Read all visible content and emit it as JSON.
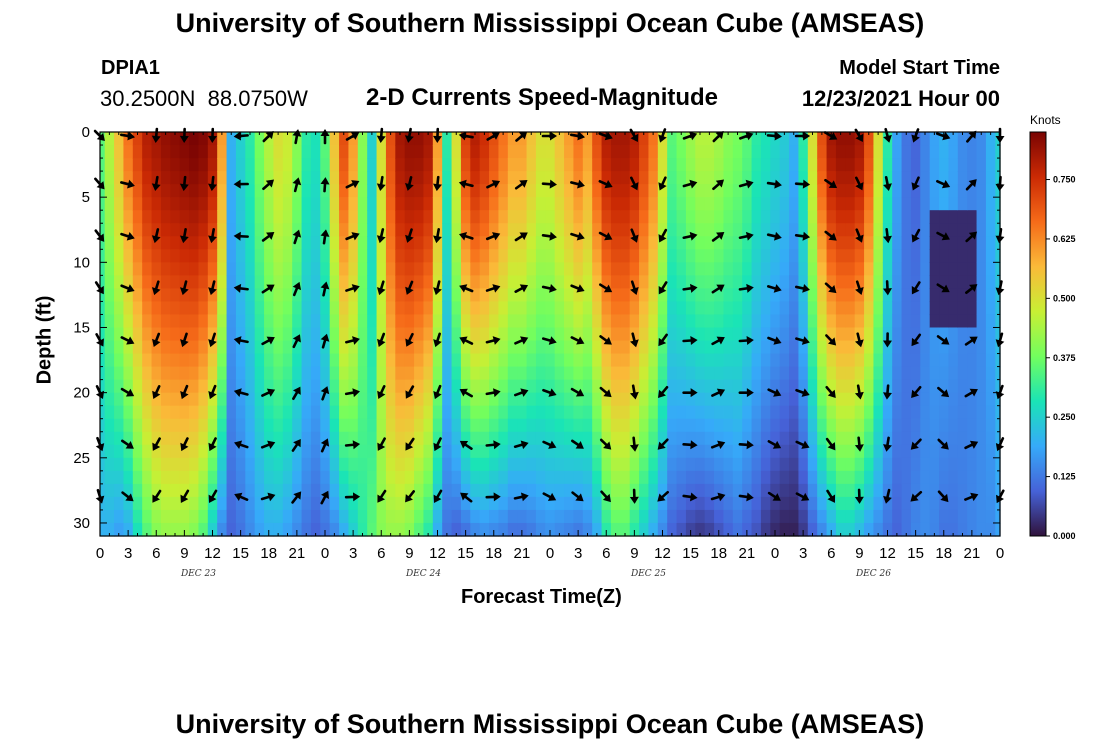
{
  "header": {
    "title": "University of Southern Mississippi Ocean Cube (AMSEAS)",
    "station_id": "DPIA1",
    "station_coords": "30.2500N  88.0750W",
    "chart_subtitle": "2-D Currents Speed-Magnitude",
    "model_start_label": "Model Start Time",
    "model_start_value": "12/23/2021 Hour 00"
  },
  "footer": {
    "title": "University of Southern Mississippi Ocean Cube (AMSEAS)"
  },
  "colors": {
    "colormap": [
      "#30123b",
      "#4662d8",
      "#36aaf9",
      "#1ae4b6",
      "#72fe5e",
      "#c8ef34",
      "#faba39",
      "#f66b19",
      "#cb2a04",
      "#7a0403"
    ]
  },
  "chart_data": {
    "type": "heatmap",
    "title": "2-D Currents Speed-Magnitude",
    "xlabel": "Forecast Time(Z)",
    "ylabel": "Depth (ft)",
    "x_ticks": [
      "0",
      "3",
      "6",
      "9",
      "12",
      "15",
      "18",
      "21",
      "0",
      "3",
      "6",
      "9",
      "12",
      "15",
      "18",
      "21",
      "0",
      "3",
      "6",
      "9",
      "12",
      "15",
      "18",
      "21",
      "0",
      "3",
      "6",
      "9",
      "12",
      "15",
      "18",
      "21",
      "0"
    ],
    "x_range_hours": [
      0,
      96
    ],
    "date_labels": [
      {
        "text": "DEC 23",
        "hour": 10.5
      },
      {
        "text": "DEC 24",
        "hour": 34.5
      },
      {
        "text": "DEC 25",
        "hour": 58.5
      },
      {
        "text": "DEC 26",
        "hour": 82.5
      }
    ],
    "y_ticks": [
      0,
      5,
      10,
      15,
      20,
      25,
      30
    ],
    "y_range_ft": [
      0,
      31
    ],
    "colorbar": {
      "label": "Knots",
      "range": [
        0,
        0.85
      ],
      "ticks": [
        "0.000",
        "0.125",
        "0.250",
        "0.375",
        "0.500",
        "0.625",
        "0.750"
      ]
    },
    "speed_profile": {
      "hours": [
        0,
        1,
        2,
        3,
        4,
        5,
        6,
        7,
        8,
        9,
        10,
        11,
        12,
        13,
        14,
        15,
        16,
        17,
        18,
        19,
        20,
        21,
        22,
        23,
        24,
        25,
        26,
        27,
        28,
        29,
        30,
        31,
        32,
        33,
        34,
        35,
        36,
        37,
        38,
        39,
        40,
        41,
        42,
        43,
        44,
        45,
        46,
        47,
        48,
        49,
        50,
        51,
        52,
        53,
        54,
        55,
        56,
        57,
        58,
        59,
        60,
        61,
        62,
        63,
        64,
        65,
        66,
        67,
        68,
        69,
        70,
        71,
        72,
        73,
        74,
        75,
        76,
        77,
        78,
        79,
        80,
        81,
        82,
        83,
        84,
        85,
        86,
        87,
        88,
        89,
        90,
        91,
        92,
        93,
        94,
        95,
        96
      ],
      "surface_knots": [
        0.35,
        0.45,
        0.55,
        0.65,
        0.72,
        0.78,
        0.8,
        0.82,
        0.83,
        0.84,
        0.85,
        0.84,
        0.8,
        0.6,
        0.2,
        0.25,
        0.3,
        0.38,
        0.45,
        0.5,
        0.48,
        0.4,
        0.3,
        0.28,
        0.35,
        0.55,
        0.7,
        0.6,
        0.4,
        0.25,
        0.5,
        0.7,
        0.8,
        0.82,
        0.82,
        0.8,
        0.6,
        0.3,
        0.5,
        0.72,
        0.78,
        0.75,
        0.7,
        0.65,
        0.6,
        0.6,
        0.55,
        0.5,
        0.5,
        0.55,
        0.6,
        0.65,
        0.6,
        0.7,
        0.78,
        0.8,
        0.8,
        0.78,
        0.72,
        0.65,
        0.5,
        0.35,
        0.38,
        0.42,
        0.45,
        0.45,
        0.43,
        0.4,
        0.38,
        0.35,
        0.3,
        0.28,
        0.26,
        0.24,
        0.2,
        0.3,
        0.5,
        0.7,
        0.8,
        0.82,
        0.82,
        0.8,
        0.7,
        0.5,
        0.3,
        0.18,
        0.12,
        0.1,
        0.14,
        0.18,
        0.2,
        0.18,
        0.15,
        0.14,
        0.15,
        0.2,
        0.25
      ],
      "bottom_knots": [
        0.2,
        0.2,
        0.18,
        0.2,
        0.28,
        0.35,
        0.4,
        0.42,
        0.42,
        0.42,
        0.4,
        0.35,
        0.25,
        0.15,
        0.1,
        0.12,
        0.15,
        0.18,
        0.2,
        0.2,
        0.18,
        0.15,
        0.12,
        0.1,
        0.12,
        0.15,
        0.2,
        0.25,
        0.3,
        0.35,
        0.4,
        0.42,
        0.42,
        0.4,
        0.35,
        0.3,
        0.2,
        0.12,
        0.1,
        0.12,
        0.15,
        0.16,
        0.15,
        0.14,
        0.12,
        0.12,
        0.13,
        0.15,
        0.16,
        0.15,
        0.14,
        0.13,
        0.15,
        0.2,
        0.3,
        0.35,
        0.35,
        0.3,
        0.25,
        0.2,
        0.15,
        0.1,
        0.08,
        0.06,
        0.05,
        0.06,
        0.08,
        0.1,
        0.12,
        0.1,
        0.08,
        0.05,
        0.03,
        0.02,
        0.02,
        0.05,
        0.1,
        0.15,
        0.2,
        0.25,
        0.25,
        0.22,
        0.18,
        0.15,
        0.12,
        0.1,
        0.12,
        0.14,
        0.15,
        0.14,
        0.12,
        0.12,
        0.13,
        0.14,
        0.15,
        0.15,
        0.18
      ]
    },
    "low_speed_pocket": {
      "hour_range": [
        89,
        93
      ],
      "depth_range_ft": [
        6,
        14
      ],
      "knots": 0.03
    },
    "vector_depths_ft": [
      0,
      4,
      8,
      12,
      16,
      20,
      24,
      28
    ],
    "vector_hours": [
      0,
      3,
      6,
      9,
      12,
      15,
      18,
      21,
      24,
      27,
      30,
      33,
      36,
      39,
      42,
      45,
      48,
      51,
      54,
      57,
      60,
      63,
      66,
      69,
      72,
      75,
      78,
      81,
      84,
      87,
      90,
      93,
      96
    ],
    "vector_angles_deg": [
      45,
      10,
      95,
      92,
      92,
      175,
      -45,
      -80,
      -90,
      -30,
      95,
      100,
      92,
      -170,
      -30,
      -40,
      0,
      10,
      20,
      60,
      110,
      -20,
      -45,
      -20,
      5,
      0,
      30,
      60,
      75,
      110,
      20,
      -50,
      90
    ]
  }
}
